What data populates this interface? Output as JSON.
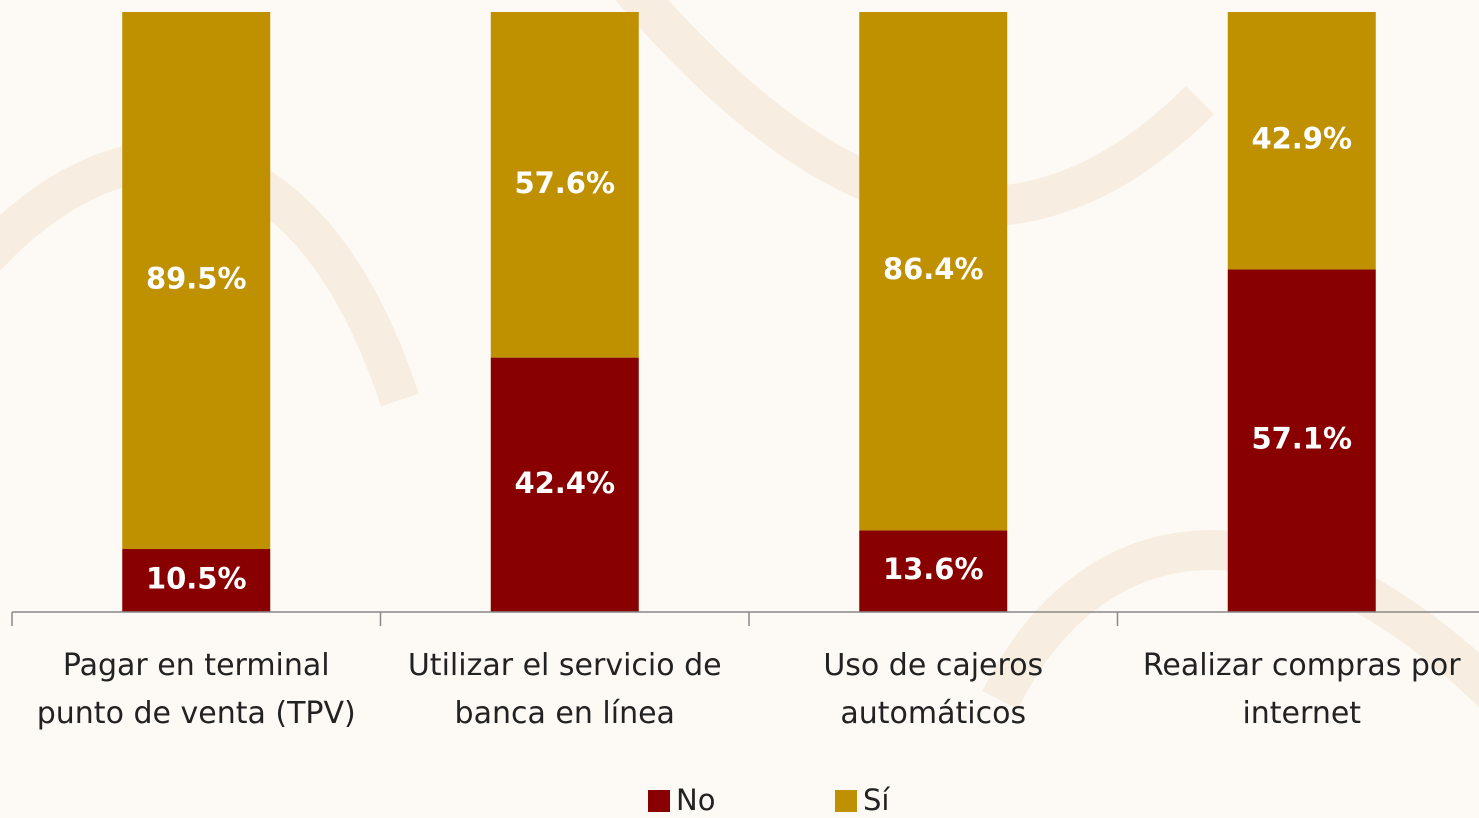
{
  "chart_data": {
    "type": "bar",
    "stacked": true,
    "categories": [
      "Pagar en terminal punto de venta (TPV)",
      "Utilizar el servicio de banca en línea",
      "Uso de cajeros automáticos",
      "Realizar compras por internet"
    ],
    "series": [
      {
        "name": "No",
        "color": "#880000",
        "values": [
          10.5,
          42.4,
          13.6,
          57.1
        ],
        "value_labels": [
          "10.5%",
          "42.4%",
          "13.6%",
          "57.1%"
        ]
      },
      {
        "name": "Sí",
        "color": "#bf9000",
        "values": [
          89.5,
          57.6,
          86.4,
          42.9
        ],
        "value_labels": [
          "89.5%",
          "57.6%",
          "86.4%",
          "42.9%"
        ]
      }
    ],
    "ylim": [
      0,
      100
    ],
    "legend": "bottom"
  }
}
